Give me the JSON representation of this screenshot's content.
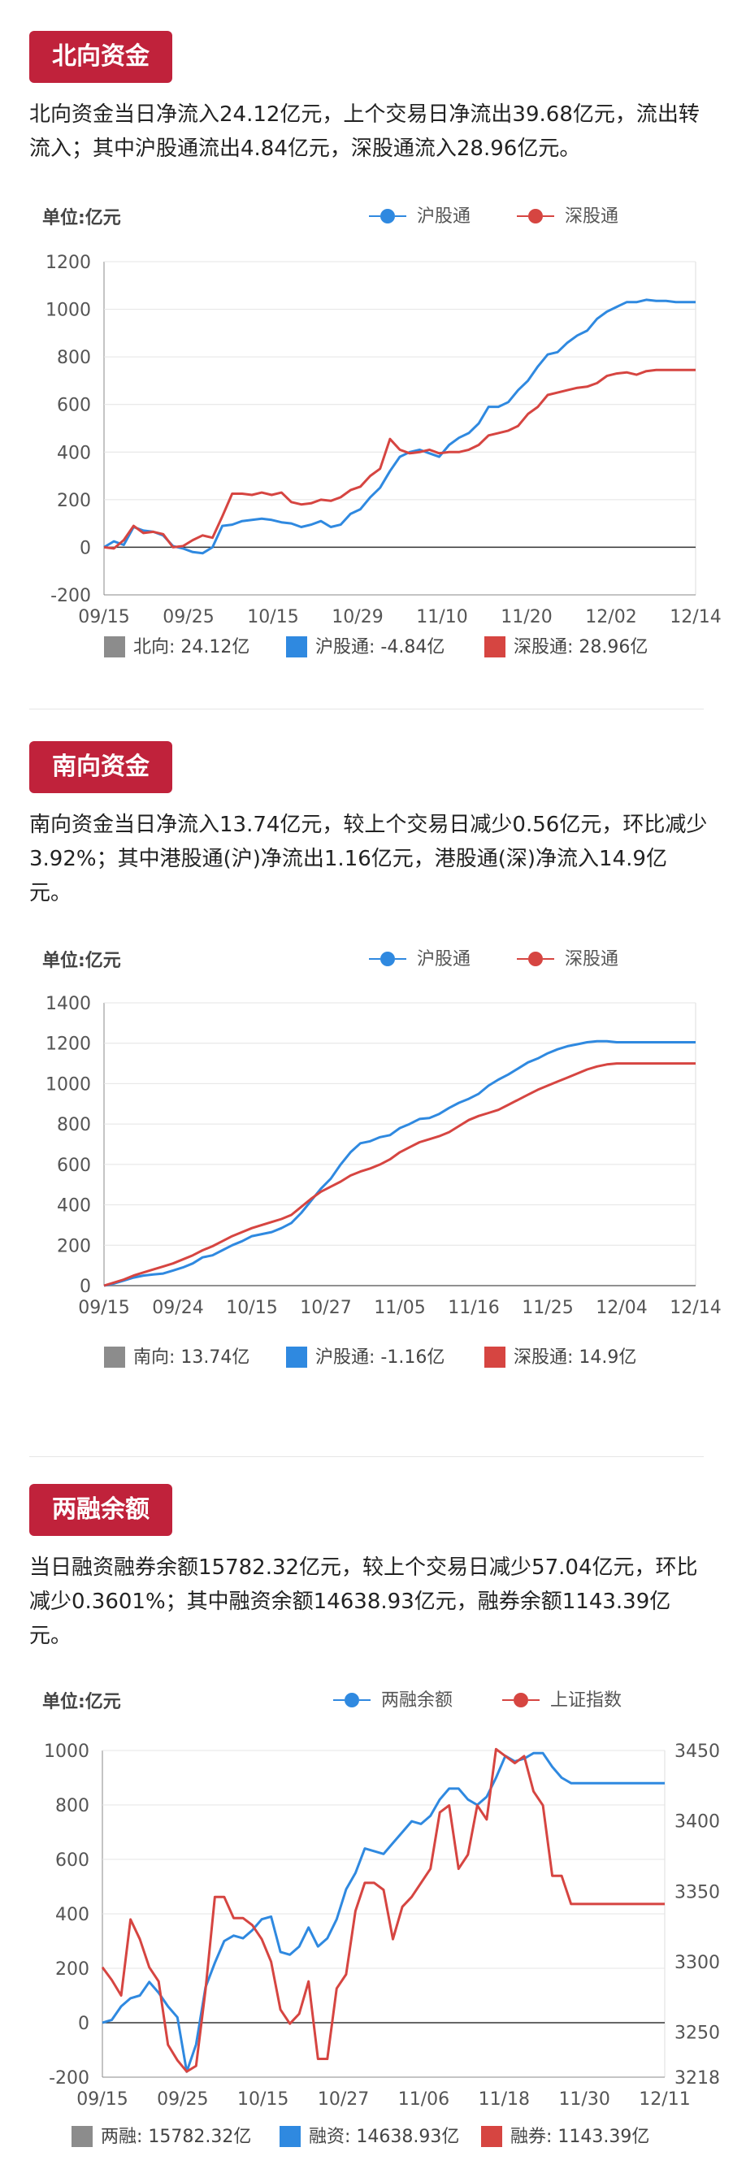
{
  "colors": {
    "blue": "#2f89e0",
    "red": "#d64541",
    "gray": "#8c8c8c",
    "badge": "#c0223b"
  },
  "north": {
    "badge": "北向资金",
    "text": "北向资金当日净流入24.12亿元，上个交易日净流出39.68亿元，流出转流入；其中沪股通流出4.84亿元，深股通流入28.96亿元。",
    "unit": "单位:亿元",
    "legend": [
      "沪股通",
      "深股通"
    ],
    "bottom": [
      "北向: 24.12亿",
      "沪股通: -4.84亿",
      "深股通: 28.96亿"
    ]
  },
  "south": {
    "badge": "南向资金",
    "text": "南向资金当日净流入13.74亿元，较上个交易日减少0.56亿元，环比减少3.92%；其中港股通(沪)净流出1.16亿元，港股通(深)净流入14.9亿元。",
    "unit": "单位:亿元",
    "legend": [
      "沪股通",
      "深股通"
    ],
    "bottom": [
      "南向: 13.74亿",
      "沪股通: -1.16亿",
      "深股通: 14.9亿"
    ]
  },
  "margin": {
    "badge": "两融余额",
    "text": "当日融资融券余额15782.32亿元，较上个交易日减少57.04亿元，环比减少0.3601%；其中融资余额14638.93亿元，融券余额1143.39亿元。",
    "unit": "单位:亿元",
    "legend": [
      "两融余额",
      "上证指数"
    ],
    "bottom": [
      "两融: 15782.32亿",
      "融资: 14638.93亿",
      "融券: 1143.39亿"
    ]
  },
  "chart_data": [
    {
      "type": "line",
      "ylim": [
        -200,
        1200
      ],
      "yticks": [
        -200,
        0,
        200,
        400,
        600,
        800,
        1000,
        1200
      ],
      "xticks": [
        "09/15",
        "09/25",
        "10/15",
        "10/29",
        "11/10",
        "11/20",
        "12/02",
        "12/14"
      ],
      "n": 61,
      "series": [
        {
          "name": "沪股通",
          "color": "#2f89e0",
          "values": [
            0,
            25,
            10,
            85,
            70,
            65,
            50,
            5,
            -5,
            -20,
            -25,
            0,
            90,
            95,
            110,
            115,
            120,
            115,
            105,
            100,
            85,
            95,
            110,
            85,
            95,
            140,
            160,
            210,
            250,
            320,
            380,
            400,
            410,
            395,
            380,
            430,
            460,
            480,
            520,
            590,
            590,
            610,
            660,
            700,
            760,
            810,
            820,
            860,
            890,
            910,
            960,
            990,
            1010,
            1030,
            1030,
            1040,
            1035,
            1035,
            1030,
            1030,
            1030
          ]
        },
        {
          "name": "深股通",
          "color": "#d64541",
          "values": [
            0,
            -5,
            30,
            90,
            60,
            65,
            55,
            0,
            5,
            30,
            50,
            40,
            130,
            225,
            225,
            220,
            230,
            220,
            230,
            190,
            180,
            185,
            200,
            195,
            210,
            240,
            255,
            300,
            330,
            455,
            410,
            395,
            400,
            410,
            395,
            400,
            400,
            410,
            430,
            470,
            480,
            490,
            510,
            560,
            590,
            640,
            650,
            660,
            670,
            675,
            690,
            720,
            730,
            735,
            725,
            740,
            745,
            745,
            745,
            745,
            745
          ]
        }
      ]
    },
    {
      "type": "line",
      "ylim": [
        0,
        1400
      ],
      "yticks": [
        0,
        200,
        400,
        600,
        800,
        1000,
        1200,
        1400
      ],
      "xticks": [
        "09/15",
        "09/24",
        "10/15",
        "10/27",
        "11/05",
        "11/16",
        "11/25",
        "12/04",
        "12/14"
      ],
      "n": 61,
      "series": [
        {
          "name": "沪股通",
          "color": "#2f89e0",
          "values": [
            0,
            10,
            25,
            40,
            50,
            55,
            60,
            75,
            90,
            110,
            140,
            150,
            175,
            200,
            220,
            245,
            255,
            265,
            285,
            310,
            360,
            420,
            480,
            530,
            600,
            660,
            705,
            715,
            735,
            745,
            780,
            800,
            825,
            830,
            850,
            880,
            905,
            925,
            950,
            990,
            1020,
            1045,
            1075,
            1105,
            1125,
            1150,
            1170,
            1185,
            1195,
            1205,
            1210,
            1210,
            1205,
            1205,
            1205,
            1205,
            1205,
            1205,
            1205,
            1205,
            1205
          ]
        },
        {
          "name": "深股通",
          "color": "#d64541",
          "values": [
            0,
            15,
            30,
            50,
            65,
            80,
            95,
            110,
            130,
            150,
            175,
            195,
            220,
            245,
            265,
            285,
            300,
            315,
            330,
            350,
            390,
            430,
            465,
            490,
            515,
            545,
            565,
            580,
            600,
            625,
            660,
            685,
            710,
            725,
            740,
            760,
            790,
            820,
            840,
            855,
            870,
            895,
            920,
            945,
            970,
            990,
            1010,
            1030,
            1050,
            1070,
            1085,
            1095,
            1100,
            1100,
            1100,
            1100,
            1100,
            1100,
            1100,
            1100,
            1100
          ]
        }
      ]
    },
    {
      "type": "line",
      "ylim": [
        -200,
        1000
      ],
      "yticks": [
        -200,
        0,
        200,
        400,
        600,
        800,
        1000
      ],
      "y2lim": [
        3218,
        3450
      ],
      "y2ticks": [
        3218,
        3250,
        3300,
        3350,
        3400,
        3450
      ],
      "xticks": [
        "09/15",
        "09/25",
        "10/15",
        "10/27",
        "11/06",
        "11/18",
        "11/30",
        "12/11"
      ],
      "n": 61,
      "series": [
        {
          "name": "两融余额",
          "axis": "left",
          "color": "#2f89e0",
          "values": [
            0,
            10,
            60,
            90,
            100,
            150,
            110,
            60,
            20,
            -180,
            -80,
            130,
            220,
            300,
            320,
            310,
            340,
            380,
            390,
            260,
            250,
            280,
            350,
            280,
            310,
            380,
            490,
            550,
            640,
            630,
            620,
            660,
            700,
            740,
            730,
            760,
            820,
            860,
            860,
            820,
            800,
            830,
            900,
            980,
            960,
            970,
            990,
            990,
            940,
            900,
            880,
            880,
            880,
            880,
            880,
            880,
            880,
            880,
            880,
            880,
            880
          ]
        },
        {
          "name": "上证指数",
          "axis": "right",
          "color": "#d64541",
          "values": [
            3296,
            3287,
            3276,
            3330,
            3316,
            3296,
            3286,
            3241,
            3230,
            3222,
            3226,
            3280,
            3346,
            3346,
            3331,
            3331,
            3326,
            3316,
            3300,
            3266,
            3256,
            3263,
            3286,
            3231,
            3231,
            3281,
            3291,
            3336,
            3356,
            3356,
            3351,
            3316,
            3339,
            3346,
            3356,
            3366,
            3406,
            3411,
            3366,
            3376,
            3411,
            3401,
            3451,
            3446,
            3441,
            3446,
            3421,
            3411,
            3361,
            3361,
            3341,
            3341,
            3341,
            3341,
            3341,
            3341,
            3341,
            3341,
            3341,
            3341,
            3341
          ]
        }
      ]
    }
  ]
}
